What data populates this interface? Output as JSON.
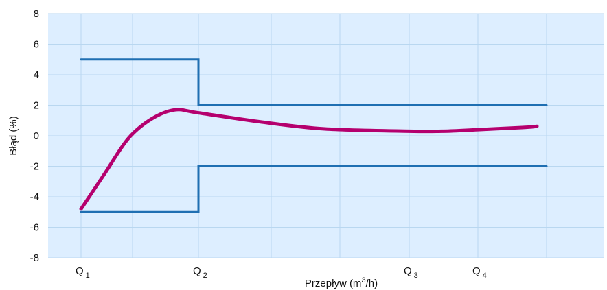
{
  "chart_data": {
    "type": "line",
    "title": "",
    "xlabel": "Przepływ (m3/h)",
    "ylabel": "Błąd (%)",
    "ylim": [
      -8,
      8
    ],
    "yticks": [
      "8",
      "6",
      "4",
      "2",
      "0",
      "-2",
      "-4",
      "-6",
      "-8"
    ],
    "grid": true,
    "x_category_labels": [
      {
        "main": "Q",
        "sub": "1",
        "x": 1
      },
      {
        "main": "Q",
        "sub": "2",
        "x": 2
      },
      {
        "main": "Q",
        "sub": "3",
        "x": 3
      },
      {
        "main": "Q",
        "sub": "4",
        "x": 4
      }
    ],
    "x_scale_note": "ordinal flow markers Q1..Q4",
    "series": [
      {
        "role": "upper-limit",
        "color": "#1f6fb2",
        "points": [
          [
            1,
            5
          ],
          [
            2,
            5
          ],
          [
            2,
            2
          ],
          [
            5,
            2
          ]
        ]
      },
      {
        "role": "lower-limit",
        "color": "#1f6fb2",
        "points": [
          [
            1,
            -5
          ],
          [
            2,
            -5
          ],
          [
            2,
            -2
          ],
          [
            5,
            -2
          ]
        ]
      },
      {
        "role": "error-curve",
        "color": "#b5006e",
        "points": [
          [
            1,
            -4.8
          ],
          [
            1.2,
            -2.5
          ],
          [
            1.4,
            -0.2
          ],
          [
            1.6,
            1.1
          ],
          [
            1.8,
            1.7
          ],
          [
            2.0,
            1.5
          ],
          [
            2.3,
            0.9
          ],
          [
            2.6,
            0.45
          ],
          [
            3.0,
            0.3
          ],
          [
            3.5,
            0.3
          ],
          [
            4.0,
            0.4
          ],
          [
            4.4,
            0.55
          ],
          [
            4.5,
            0.62
          ]
        ]
      }
    ]
  },
  "colors": {
    "plot_background": "#ddeeff",
    "grid": "#b9d7f0",
    "limits": "#1f6fb2",
    "curve": "#b5006e"
  }
}
